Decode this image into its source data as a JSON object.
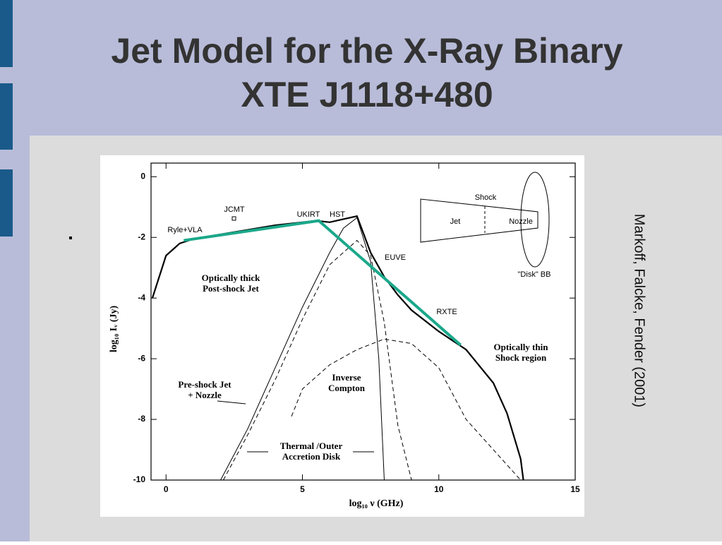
{
  "slide": {
    "title": [
      "Jet Model for the X-Ray Binary",
      "XTE J1118+480"
    ],
    "citation": "Markoff, Falcke, Fender (2001)"
  },
  "chart_data": {
    "type": "line",
    "xlabel": "log₁₀ ν (GHz)",
    "ylabel": "log₁₀ Iᵥ (Jy)",
    "xlim": [
      -0.55,
      15
    ],
    "ylim": [
      -10,
      0.45
    ],
    "xticks": [
      0,
      5,
      10,
      15
    ],
    "yticks": [
      0,
      -2,
      -4,
      -6,
      -8,
      -10
    ],
    "series": [
      {
        "color": "#000000",
        "linestyle": "solid",
        "linewidth": 2.2,
        "x": [
          -0.5,
          0,
          0.5,
          1,
          2,
          3,
          4,
          5,
          5.5,
          6,
          6.5,
          7,
          7.5,
          8,
          8.5,
          9,
          10,
          11,
          12,
          12.5,
          13,
          13.1
        ],
        "values": [
          -4,
          -2.6,
          -2.2,
          -2.05,
          -1.9,
          -1.75,
          -1.6,
          -1.5,
          -1.45,
          -1.5,
          -1.4,
          -1.3,
          -2.5,
          -3.3,
          -3.9,
          -4.4,
          -5.1,
          -5.7,
          -6.8,
          -7.8,
          -9.3,
          -10
        ]
      },
      {
        "color": "#000000",
        "linestyle": "solid",
        "linewidth": 1,
        "x": [
          2,
          3,
          4,
          5,
          6,
          6.5,
          7,
          7.5,
          7.8,
          8
        ],
        "values": [
          -10,
          -8.3,
          -6.3,
          -4.3,
          -2.5,
          -1.7,
          -1.35,
          -2.8,
          -6,
          -10
        ]
      },
      {
        "color": "#000000",
        "linestyle": "dashed",
        "linewidth": 1,
        "x": [
          2.1,
          3,
          4,
          5,
          6,
          7,
          7.5,
          8,
          8.5,
          9
        ],
        "values": [
          -10,
          -8.5,
          -6.7,
          -4.7,
          -2.9,
          -2.1,
          -2.6,
          -4.8,
          -8.2,
          -10
        ]
      },
      {
        "color": "#000000",
        "linestyle": "dashed",
        "linewidth": 1,
        "x": [
          4.6,
          5,
          6,
          7,
          8,
          9,
          10,
          11,
          12,
          13
        ],
        "values": [
          -7.9,
          -7,
          -6.2,
          -5.7,
          -5.35,
          -5.5,
          -6.3,
          -8,
          -9,
          -10
        ]
      },
      {
        "color": "#1aa88a",
        "linestyle": "solid",
        "linewidth": 4,
        "x": [
          0.65,
          5.6,
          10.8
        ],
        "values": [
          -2.1,
          -1.45,
          -5.55
        ]
      }
    ],
    "annotations": [
      [
        "JCMT"
      ],
      [
        "Ryle+VLA"
      ],
      [
        "UKIRT"
      ],
      [
        "HST"
      ],
      [
        "EUVE"
      ],
      [
        "RXTE"
      ],
      [
        "Optically thick",
        "Post-shock Jet"
      ],
      [
        "Optically thin",
        "Shock region"
      ],
      [
        "Pre-shock Jet",
        "+ Nozzle"
      ],
      [
        "Inverse",
        "Compton"
      ],
      [
        "Thermal /Outer",
        "Accretion Disk"
      ],
      [
        "Shock"
      ],
      [
        "Jet"
      ],
      [
        "Nozzle"
      ],
      [
        "\"Disk\" BB"
      ]
    ]
  }
}
